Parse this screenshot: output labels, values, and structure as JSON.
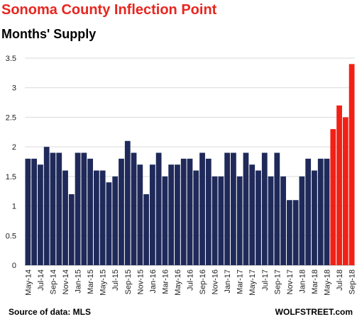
{
  "header": {
    "title": "Sonoma County Inflection Point",
    "subtitle": "Months'  Supply"
  },
  "footer": {
    "source": "Source of data: MLS",
    "brand": "WOLFSTREET.com"
  },
  "colors": {
    "title": "#e8251f",
    "bar_default": "#1f2a5a",
    "bar_highlight": "#f22016",
    "grid": "#d9d9d9"
  },
  "chart_data": {
    "type": "bar",
    "title": "Sonoma County Inflection Point",
    "subtitle": "Months'  Supply",
    "xlabel": "",
    "ylabel": "",
    "ylim": [
      0,
      3.5
    ],
    "yticks": [
      0,
      0.5,
      1,
      1.5,
      2,
      2.5,
      3,
      3.5
    ],
    "ytick_labels": [
      "0",
      "0.5",
      "1",
      "1.5",
      "2",
      "2.5",
      "3",
      "3.5"
    ],
    "grid": true,
    "categories": [
      "May-14",
      "Jun-14",
      "Jul-14",
      "Aug-14",
      "Sep-14",
      "Oct-14",
      "Nov-14",
      "Dec-14",
      "Jan-15",
      "Feb-15",
      "Mar-15",
      "Apr-15",
      "May-15",
      "Jun-15",
      "Jul-15",
      "Aug-15",
      "Sep-15",
      "Oct-15",
      "Nov-15",
      "Dec-15",
      "Jan-16",
      "Feb-16",
      "Mar-16",
      "Apr-16",
      "May-16",
      "Jun-16",
      "Jul-16",
      "Aug-16",
      "Sep-16",
      "Oct-16",
      "Nov-16",
      "Dec-16",
      "Jan-17",
      "Feb-17",
      "Mar-17",
      "Apr-17",
      "May-17",
      "Jun-17",
      "Jul-17",
      "Aug-17",
      "Sep-17",
      "Oct-17",
      "Nov-17",
      "Dec-17",
      "Jan-18",
      "Feb-18",
      "Mar-18",
      "Apr-18",
      "May-18",
      "Jun-18",
      "Jul-18",
      "Aug-18",
      "Sep-18"
    ],
    "x_tick_labels_shown": [
      "May-14",
      "Jul-14",
      "Sep-14",
      "Nov-14",
      "Jan-15",
      "Mar-15",
      "May-15",
      "Jul-15",
      "Sep-15",
      "Nov-15",
      "Jan-16",
      "Mar-16",
      "May-16",
      "Jul-16",
      "Sep-16",
      "Nov-16",
      "Jan-17",
      "Mar-17",
      "May-17",
      "Jul-17",
      "Sep-17",
      "Nov-17",
      "Jan-18",
      "Mar-18",
      "May-18",
      "Jul-18",
      "Sep-18"
    ],
    "values": [
      1.8,
      1.8,
      1.7,
      2.0,
      1.9,
      1.9,
      1.6,
      1.2,
      1.9,
      1.9,
      1.8,
      1.6,
      1.6,
      1.4,
      1.5,
      1.8,
      2.1,
      1.9,
      1.7,
      1.2,
      1.7,
      1.9,
      1.5,
      1.7,
      1.7,
      1.8,
      1.8,
      1.6,
      1.9,
      1.8,
      1.5,
      1.5,
      1.9,
      1.9,
      1.5,
      1.9,
      1.7,
      1.6,
      1.9,
      1.5,
      1.9,
      1.5,
      1.1,
      1.1,
      1.5,
      1.8,
      1.6,
      1.8,
      1.8,
      2.3,
      2.7,
      2.5,
      3.4
    ],
    "highlighted_categories": [
      "Jun-18",
      "Jul-18",
      "Aug-18",
      "Sep-18"
    ]
  }
}
